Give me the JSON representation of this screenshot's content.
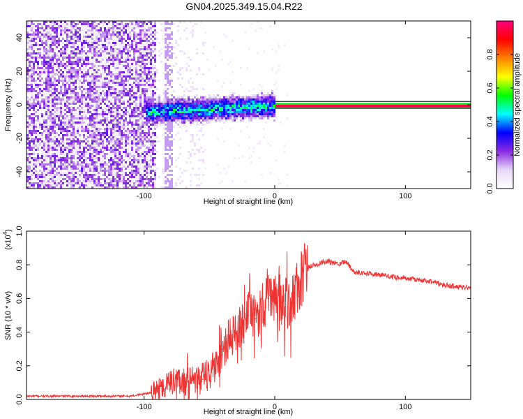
{
  "title": "GN04.2025.349.15.04.R22",
  "chart_data": [
    {
      "type": "heatmap",
      "name": "spectrogram",
      "xlabel": "Height of straight line (km)",
      "ylabel": "Frequency (Hz)",
      "xlim": [
        -190,
        150
      ],
      "ylim": [
        -50,
        50
      ],
      "xticks": [
        -100,
        0,
        100
      ],
      "yticks": [
        40,
        20,
        0,
        -20,
        -40
      ],
      "colorbar": {
        "label": "Normalized spectral amplitude",
        "range": [
          0,
          1
        ],
        "ticks": [
          0.0,
          0.2,
          0.4,
          0.6,
          0.8
        ],
        "colormap": [
          "#ffffff",
          "#e8d8fa",
          "#8a2be2",
          "#0000ff",
          "#00ffff",
          "#00ff00",
          "#ffff00",
          "#ff8000",
          "#ff0000",
          "#ff0080"
        ]
      },
      "features": {
        "noise_region_x": [
          -190,
          -92
        ],
        "signal_start_x": -100,
        "carrier_frequency_hz": 0,
        "carrier_start_x": 0,
        "carrier_end_x": 150
      }
    },
    {
      "type": "line",
      "name": "snr",
      "xlabel": "Height of straight line (km)",
      "ylabel": "SNR (10 * v/v)",
      "y_scale_label": "(x10",
      "y_scale_exponent": "4",
      "xlim": [
        -190,
        150
      ],
      "ylim": [
        0,
        1.0
      ],
      "xticks": [
        -100,
        0,
        100
      ],
      "yticks": [
        0.0,
        0.2,
        0.4,
        0.6,
        0.8,
        1.0
      ],
      "color": "#ee3333",
      "series": [
        {
          "name": "SNR",
          "x": [
            -190,
            -150,
            -110,
            -95,
            -85,
            -75,
            -65,
            -55,
            -45,
            -40,
            -35,
            -30,
            -25,
            -20,
            -15,
            -10,
            -5,
            0,
            5,
            10,
            15,
            20,
            25,
            30,
            35,
            40,
            45,
            50,
            55,
            60,
            70,
            80,
            90,
            100,
            110,
            120,
            130,
            140,
            150
          ],
          "y": [
            0.02,
            0.02,
            0.02,
            0.04,
            0.08,
            0.12,
            0.1,
            0.12,
            0.2,
            0.3,
            0.35,
            0.4,
            0.45,
            0.5,
            0.48,
            0.55,
            0.6,
            0.62,
            0.58,
            0.55,
            0.62,
            0.7,
            0.78,
            0.8,
            0.81,
            0.82,
            0.81,
            0.81,
            0.82,
            0.76,
            0.75,
            0.74,
            0.73,
            0.72,
            0.71,
            0.7,
            0.68,
            0.67,
            0.66
          ]
        }
      ]
    }
  ]
}
